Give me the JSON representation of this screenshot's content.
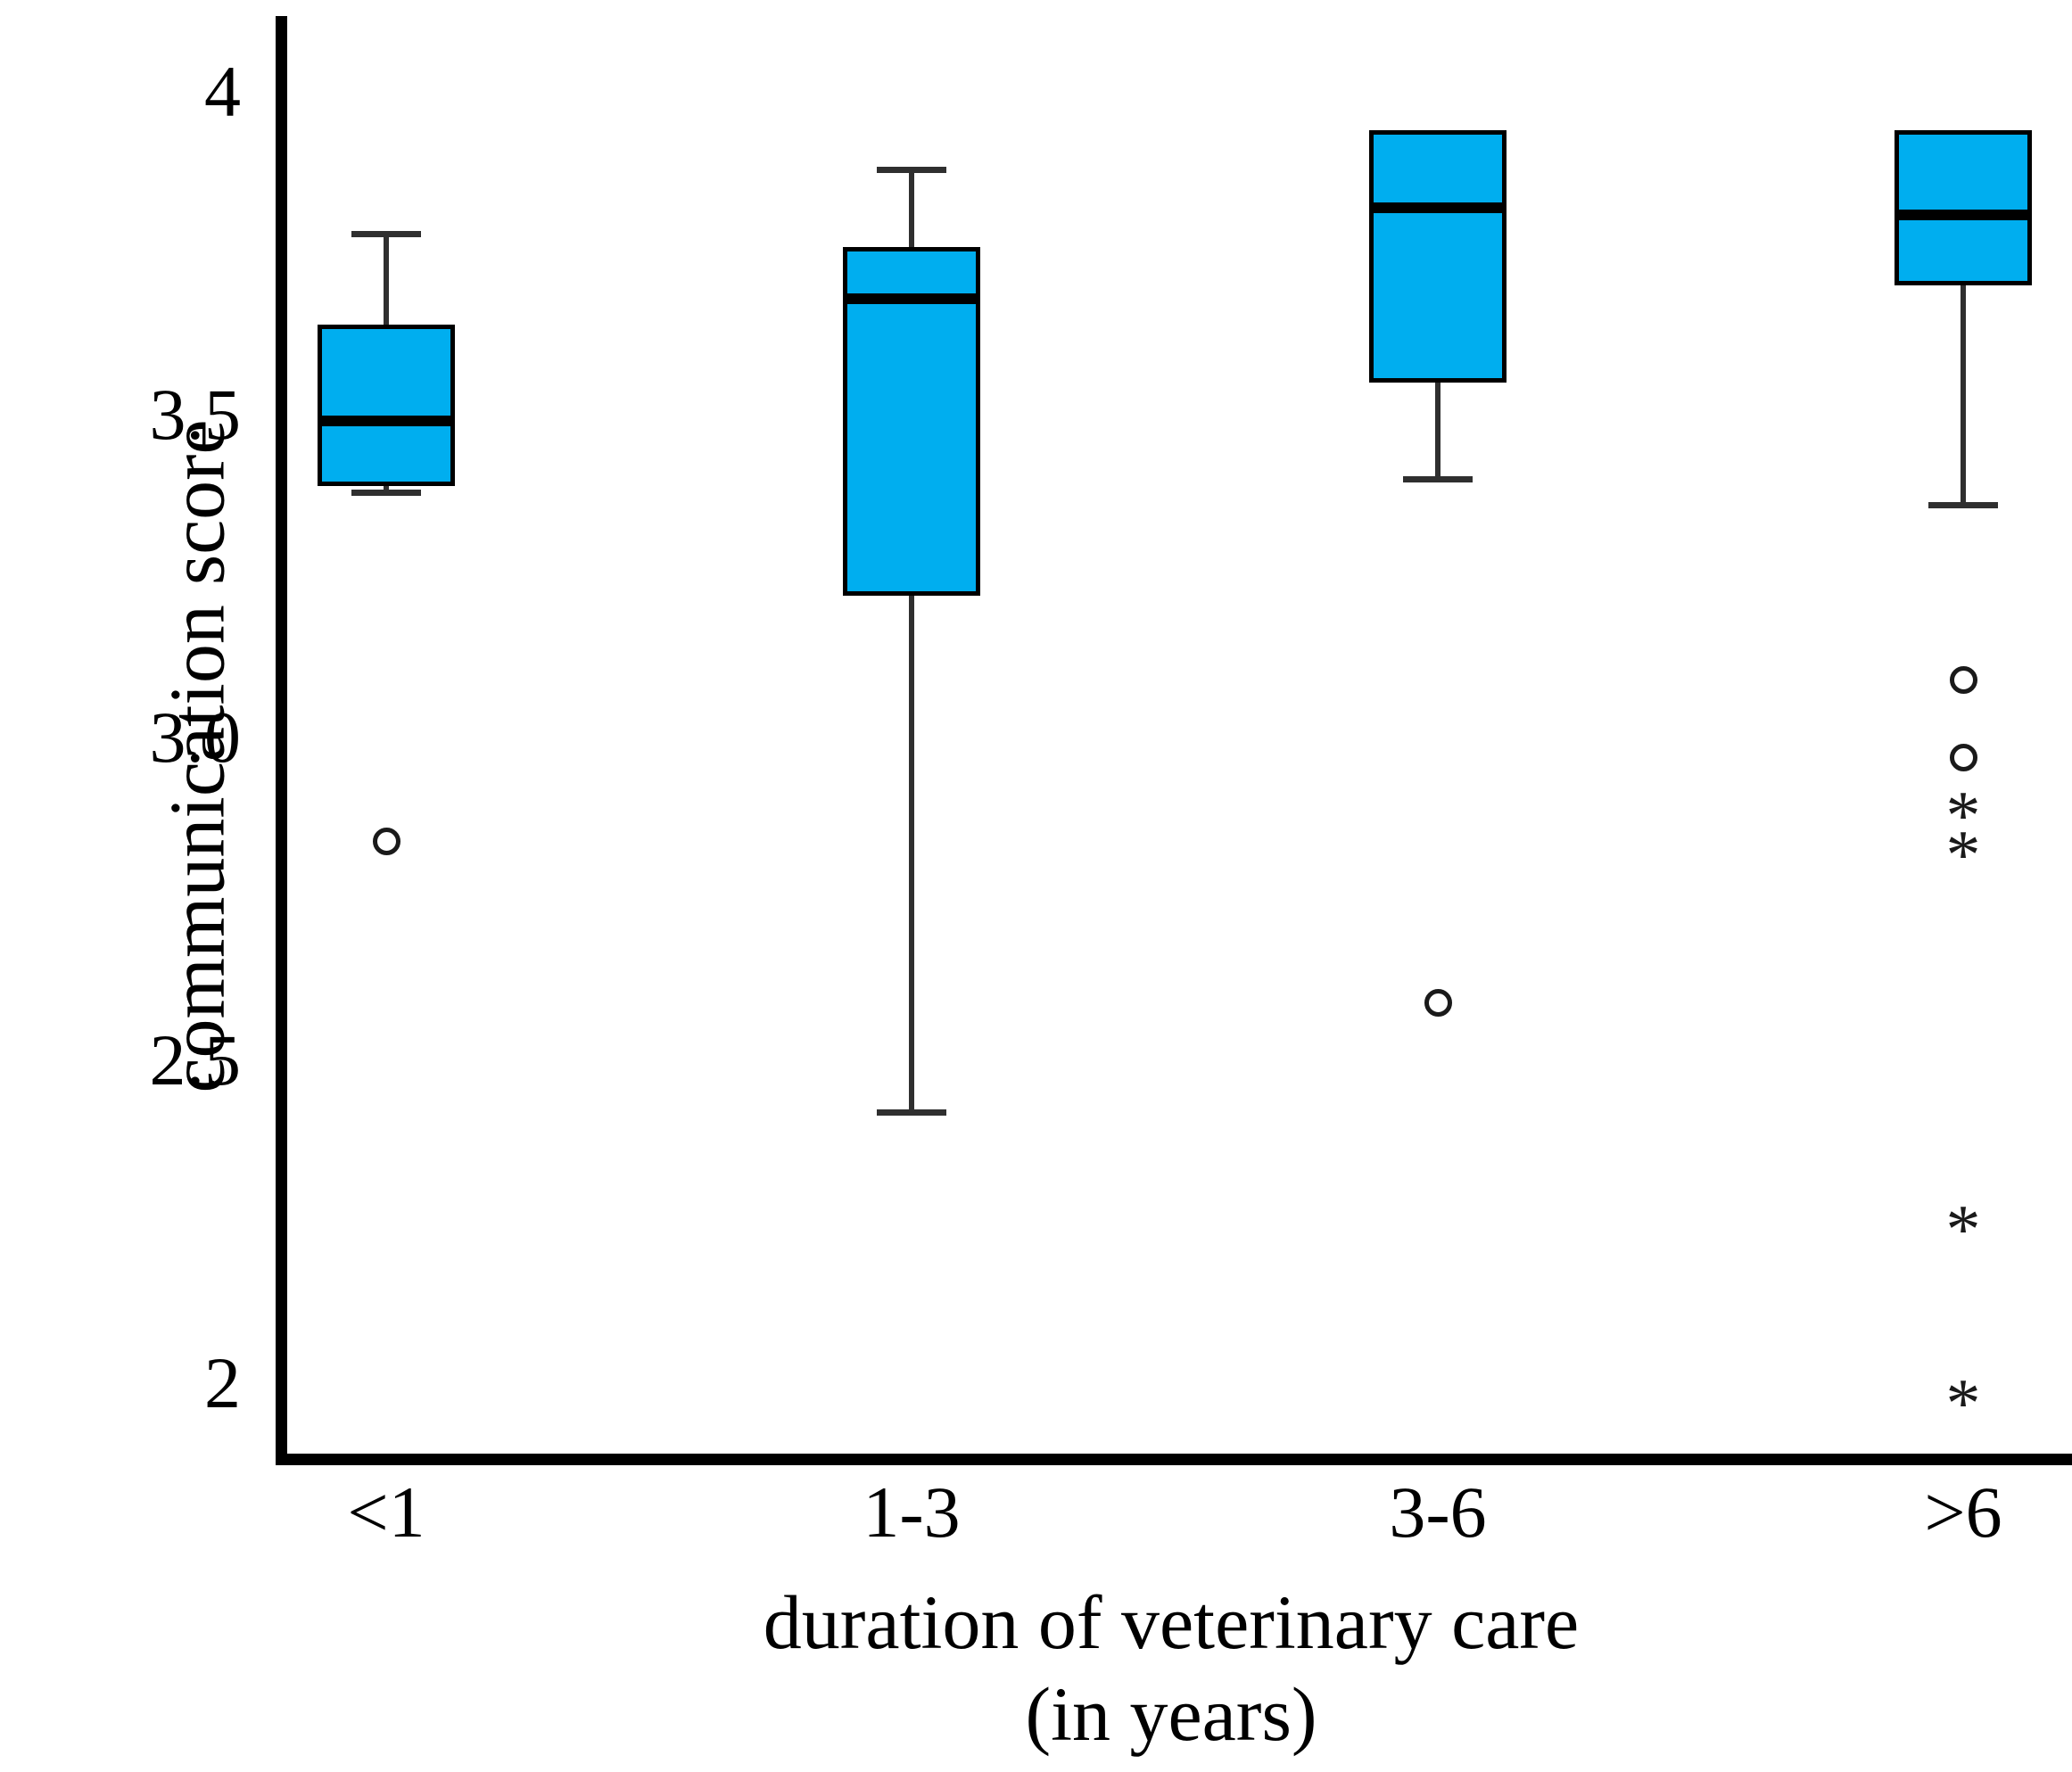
{
  "figure": {
    "y_axis_title": "communication score",
    "x_axis_title_line1": "duration of veterinary care",
    "x_axis_title_line2": "(in years)"
  },
  "chart_data": {
    "type": "boxplot",
    "title": "",
    "xlabel": "duration of veterinary care (in years)",
    "ylabel": "communication score",
    "ylim": [
      1.85,
      4.05
    ],
    "grid": false,
    "legend": "none",
    "y_ticks": [
      {
        "value": 4.0,
        "label": "4"
      },
      {
        "value": 3.5,
        "label": "3.5"
      },
      {
        "value": 3.0,
        "label": "3.0"
      },
      {
        "value": 2.5,
        "label": "2.5"
      },
      {
        "value": 2.0,
        "label": "2"
      }
    ],
    "categories": [
      "<1",
      "1-3",
      "3-6",
      ">6"
    ],
    "series": [
      {
        "category": "<1",
        "whisker_high": 3.78,
        "q3": 3.64,
        "median": 3.49,
        "q1": 3.39,
        "whisker_low": 3.38,
        "outliers_circle": [
          2.84
        ],
        "outliers_star": []
      },
      {
        "category": "1-3",
        "whisker_high": 3.88,
        "q3": 3.76,
        "median": 3.68,
        "q1": 3.22,
        "whisker_low": 2.42,
        "outliers_circle": [],
        "outliers_star": []
      },
      {
        "category": "3-6",
        "whisker_high": null,
        "q3": 3.94,
        "median": 3.82,
        "q1": 3.55,
        "whisker_low": 3.4,
        "outliers_circle": [
          2.59
        ],
        "outliers_star": []
      },
      {
        "category": ">6",
        "whisker_high": null,
        "q3": 3.94,
        "median": 3.81,
        "q1": 3.7,
        "whisker_low": 3.36,
        "outliers_circle": [
          3.09,
          2.97
        ],
        "outliers_star": [
          2.9,
          2.84,
          2.26,
          1.99
        ]
      }
    ],
    "markers": {
      "mild_outlier": "circle",
      "extreme_outlier": "asterisk"
    },
    "box_fill_color": "#00AEEF",
    "box_border_color": "#000000",
    "median_color": "#000000",
    "whisker_color": "#2f2f2f",
    "axis_color": "#000000",
    "background_color": "#ffffff"
  }
}
